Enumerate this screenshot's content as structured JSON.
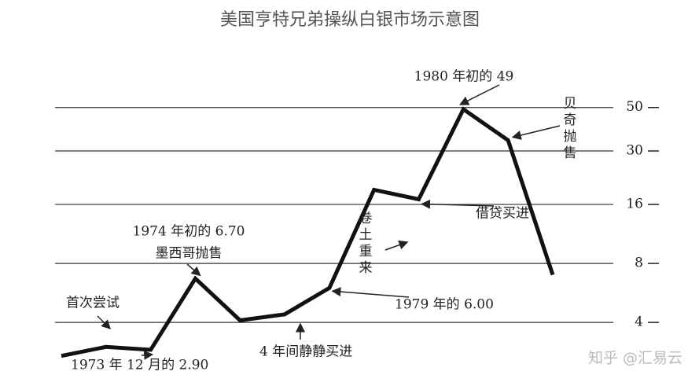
{
  "chart_data": {
    "type": "line",
    "title": "美国亨特兄弟操纵白银市场示意图",
    "categories": [
      null,
      null,
      null,
      null,
      null,
      null,
      null,
      null,
      null,
      null,
      null,
      null
    ],
    "series": [
      {
        "color": "#111111",
        "values": [
          2.7,
          3.0,
          2.9,
          6.7,
          4.1,
          4.4,
          6.0,
          19,
          17,
          49,
          34,
          7.0
        ]
      }
    ],
    "ylim": [
      2.5,
      60
    ],
    "yticks": [
      4,
      8,
      16,
      30,
      50
    ],
    "log_scale": true,
    "grid": true,
    "annotations": [
      "1980 年初的 49",
      "贝奇抛售",
      "借贷买进",
      "卷土重来",
      "1974 年初的 6.70",
      "墨西哥抛售",
      "首次尝试",
      "1973 年 12 月的 2.90",
      "4 年间静静买进",
      "1979 年的 6.00"
    ],
    "watermark": "知乎 @汇易云"
  }
}
